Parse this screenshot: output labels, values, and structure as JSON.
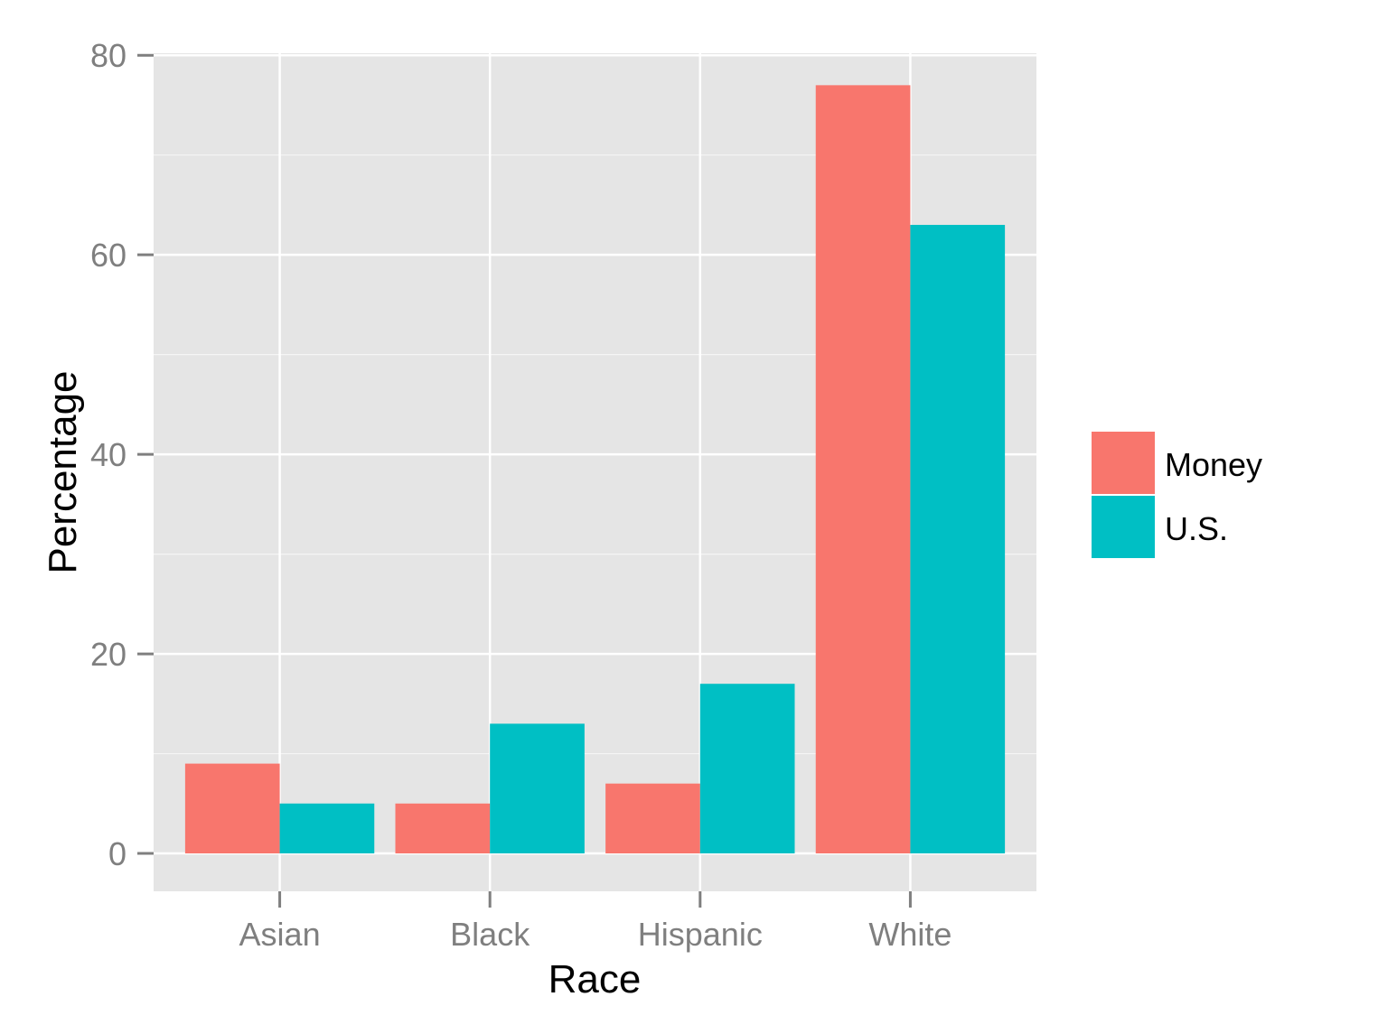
{
  "chart_data": {
    "type": "bar",
    "categories": [
      "Asian",
      "Black",
      "Hispanic",
      "White"
    ],
    "series": [
      {
        "name": "Money",
        "values": [
          9,
          5,
          7,
          77
        ],
        "color": "#F8766D"
      },
      {
        "name": "U.S.",
        "values": [
          5,
          13,
          17,
          63
        ],
        "color": "#00BFC4"
      }
    ],
    "xlabel": "Race",
    "ylabel": "Percentage",
    "ylim": [
      -3.8,
      80.2
    ],
    "yticks": [
      0,
      20,
      40,
      60,
      80
    ],
    "y_minor_ticks": [
      10,
      30,
      50,
      70
    ],
    "ytick_labels": [
      "0",
      "20",
      "40",
      "60",
      "80"
    ],
    "grid": true,
    "legend_position": "right",
    "panel_color": "#E5E5E5",
    "grid_color": "#FFFFFF"
  }
}
